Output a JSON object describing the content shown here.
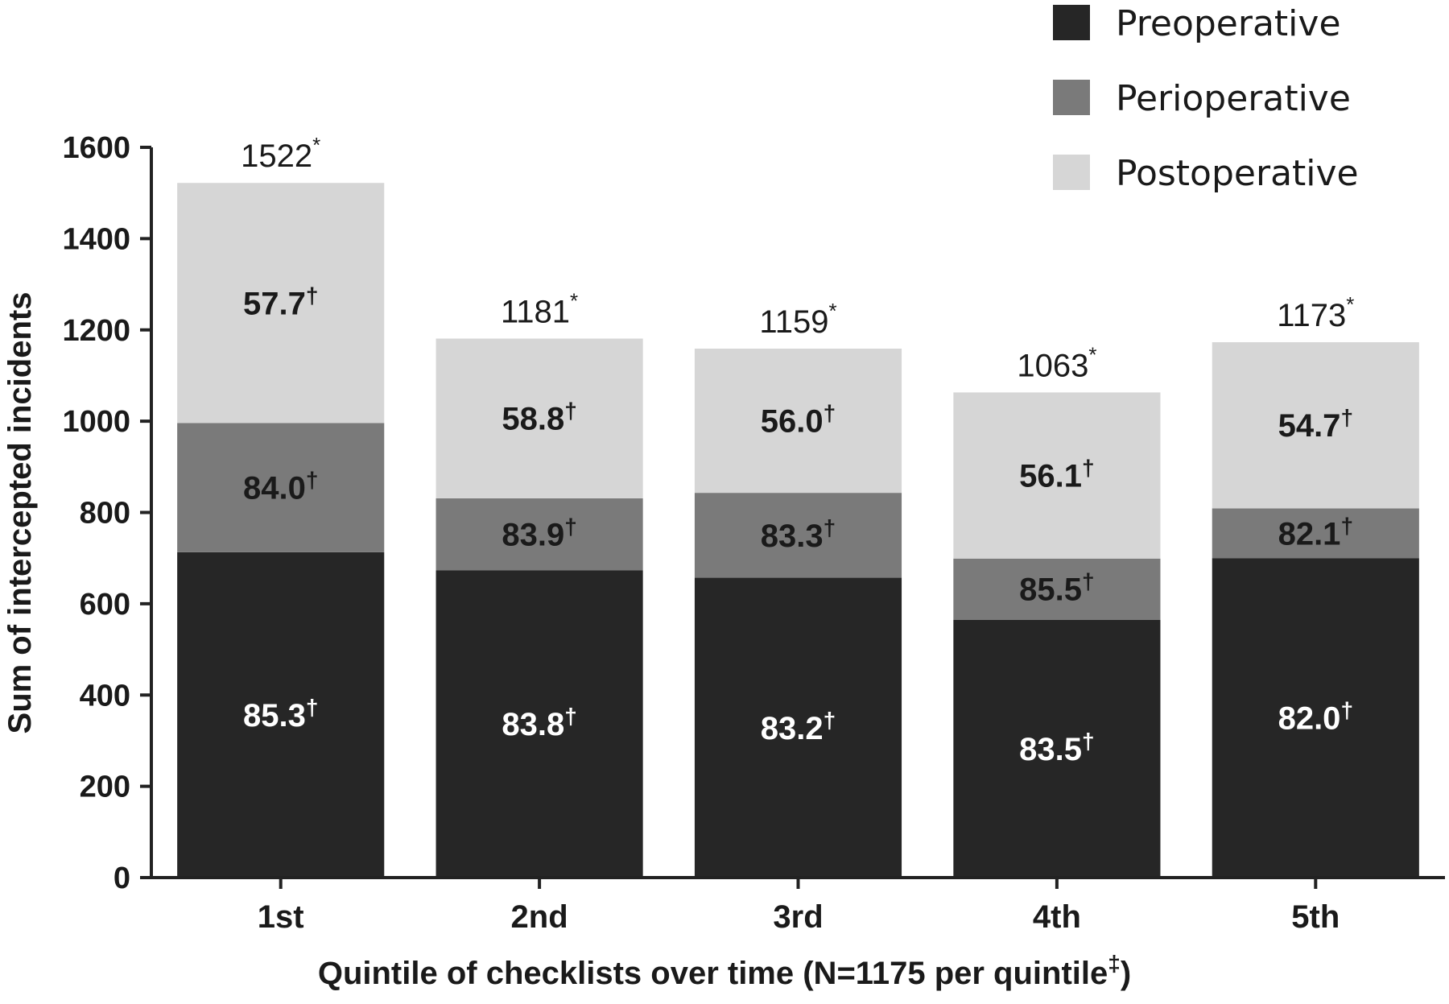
{
  "chart_data": {
    "type": "bar",
    "stacked": true,
    "categories": [
      "1st",
      "2nd",
      "3rd",
      "4th",
      "5th"
    ],
    "series": [
      {
        "name": "Preoperative",
        "color": "#262626",
        "label_color": "#ffffff",
        "values": [
          713,
          673,
          657,
          565,
          700
        ],
        "labels": [
          "85.3",
          "83.8",
          "83.2",
          "83.5",
          "82.0"
        ]
      },
      {
        "name": "Perioperative",
        "color": "#7a7a7a",
        "label_color": "#1a1a1a",
        "values": [
          283,
          158,
          186,
          134,
          109
        ],
        "labels": [
          "84.0",
          "83.9",
          "83.3",
          "85.5",
          "82.1"
        ]
      },
      {
        "name": "Postoperative",
        "color": "#d6d6d6",
        "label_color": "#1a1a1a",
        "values": [
          526,
          350,
          316,
          364,
          364
        ],
        "labels": [
          "57.7",
          "58.8",
          "56.0",
          "56.1",
          "54.7"
        ]
      }
    ],
    "totals": [
      "1522",
      "1181",
      "1159",
      "1063",
      "1173"
    ],
    "total_marker": "*",
    "segment_marker": "†",
    "xlabel": "Quintile of checklists over time (N=1175 per quintile",
    "xlabel_marker": "‡",
    "xlabel_close": ")",
    "ylabel": "Sum of intercepted incidents",
    "ylim": [
      0,
      1600
    ],
    "yticks": [
      0,
      200,
      400,
      600,
      800,
      1000,
      1200,
      1400,
      1600
    ],
    "legend_position": "top-right",
    "grid": false
  }
}
